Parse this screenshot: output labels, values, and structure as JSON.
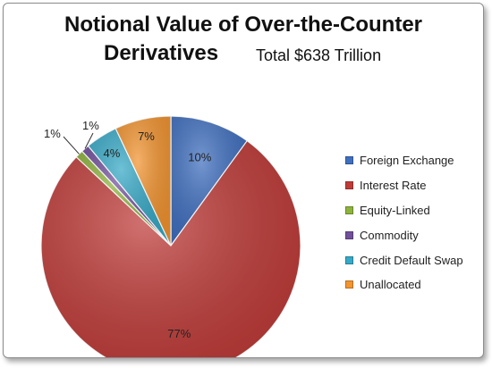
{
  "chart_data": {
    "type": "pie",
    "title_line1": "Notional Value of Over-the-Counter",
    "title_line2": "Derivatives",
    "subtitle": "Total $638 Trillion",
    "legend_position": "right",
    "slices": [
      {
        "name": "Foreign Exchange",
        "value": 10,
        "label": "10%",
        "color": "#3f6fbf"
      },
      {
        "name": "Interest Rate",
        "value": 77,
        "label": "77%",
        "color": "#bf3b38"
      },
      {
        "name": "Equity-Linked",
        "value": 1,
        "label": "1%",
        "color": "#8db33c"
      },
      {
        "name": "Commodity",
        "value": 1,
        "label": "1%",
        "color": "#72509c"
      },
      {
        "name": "Credit Default Swap",
        "value": 4,
        "label": "4%",
        "color": "#36a9c6"
      },
      {
        "name": "Unallocated",
        "value": 7,
        "label": "7%",
        "color": "#f29430"
      }
    ]
  }
}
